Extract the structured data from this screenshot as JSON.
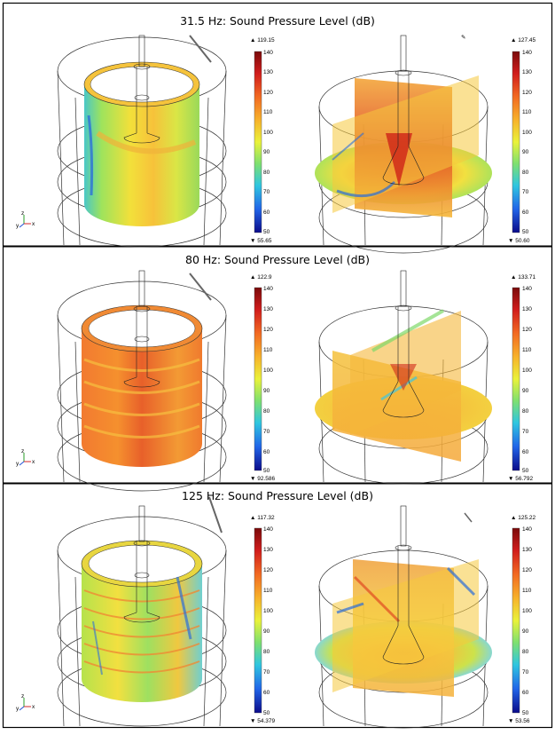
{
  "panels": [
    {
      "title": "31.5 Hz: Sound Pressure Level (dB)",
      "left": {
        "max": "▲ 119.15",
        "min": "▼ 55.65"
      },
      "right": {
        "max": "▲ 127.45",
        "min": "▼ 50.60"
      }
    },
    {
      "title": "80 Hz: Sound Pressure Level (dB)",
      "left": {
        "max": "▲ 122.9",
        "min": "▼ 92.586"
      },
      "right": {
        "max": "▲ 133.71",
        "min": "▼ 56.792"
      }
    },
    {
      "title": "125 Hz: Sound Pressure Level (dB)",
      "left": {
        "max": "▲ 117.32",
        "min": "▼ 54.379"
      },
      "right": {
        "max": "▲ 125.22",
        "min": "▼ 53.56"
      }
    }
  ],
  "colorbar_ticks": [
    "140",
    "130",
    "120",
    "110",
    "100",
    "90",
    "80",
    "70",
    "60",
    "50"
  ],
  "colorbar_ticks_variant": [
    "140",
    "130",
    "120",
    "110",
    "100",
    "90",
    "80",
    "70",
    "60",
    "50"
  ],
  "axis_labels": {
    "x": "x",
    "y": "y",
    "z": "z"
  },
  "colors": {
    "red": "#d7301f",
    "orange": "#f08a3c",
    "yellow": "#f2e23a",
    "green": "#7fd86a",
    "cyan": "#3fc6df",
    "blue": "#1e49d6"
  },
  "icons": [
    "axis-triad-icon",
    "max-marker-icon",
    "min-marker-icon"
  ]
}
